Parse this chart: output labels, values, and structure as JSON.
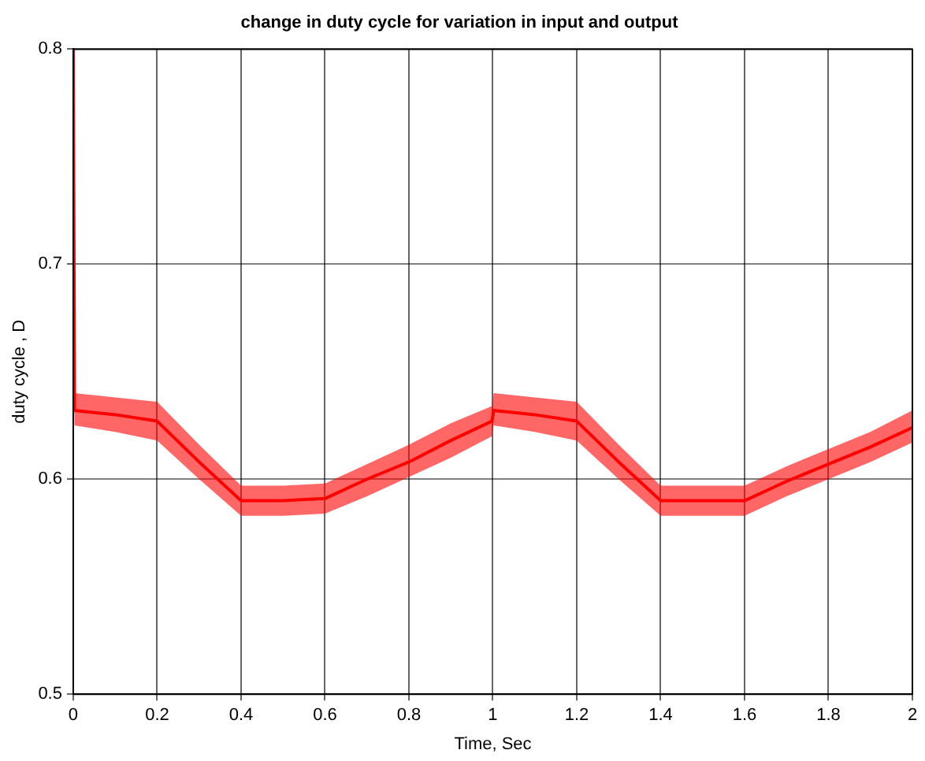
{
  "chart_data": {
    "type": "line",
    "title": "change in duty cycle for variation in input and output",
    "xlabel": "Time, Sec",
    "ylabel": "duty cycle , D",
    "series": [
      {
        "color": "#ff0000",
        "x": [
          0,
          0.003,
          0.1,
          0.2,
          0.3,
          0.4,
          0.5,
          0.6,
          0.7,
          0.8,
          0.9,
          0.998,
          1.002,
          1.1,
          1.2,
          1.3,
          1.4,
          1.5,
          1.6,
          1.7,
          1.8,
          1.9,
          2.0
        ],
        "values": [
          0.8,
          0.632,
          0.63,
          0.627,
          0.608,
          0.59,
          0.59,
          0.591,
          0.6,
          0.608,
          0.618,
          0.627,
          0.632,
          0.63,
          0.627,
          0.608,
          0.59,
          0.59,
          0.59,
          0.599,
          0.607,
          0.615,
          0.624
        ],
        "lower": [
          0.8,
          0.625,
          0.622,
          0.618,
          0.6,
          0.583,
          0.583,
          0.584,
          0.592,
          0.601,
          0.61,
          0.62,
          0.625,
          0.622,
          0.618,
          0.6,
          0.583,
          0.583,
          0.583,
          0.592,
          0.6,
          0.608,
          0.617
        ],
        "upper": [
          0.8,
          0.64,
          0.638,
          0.636,
          0.616,
          0.597,
          0.597,
          0.598,
          0.607,
          0.616,
          0.626,
          0.634,
          0.64,
          0.638,
          0.636,
          0.616,
          0.597,
          0.597,
          0.597,
          0.606,
          0.614,
          0.622,
          0.632
        ]
      }
    ],
    "xlim": [
      0,
      2
    ],
    "xticks": [
      0,
      0.2,
      0.4,
      0.6,
      0.8,
      1,
      1.2,
      1.4,
      1.6,
      1.8,
      2
    ],
    "ylim": [
      0.5,
      0.8
    ],
    "yticks": [
      0.5,
      0.6,
      0.7,
      0.8
    ],
    "grid": true,
    "legend": false,
    "line_style": "solid",
    "marker": "none"
  }
}
